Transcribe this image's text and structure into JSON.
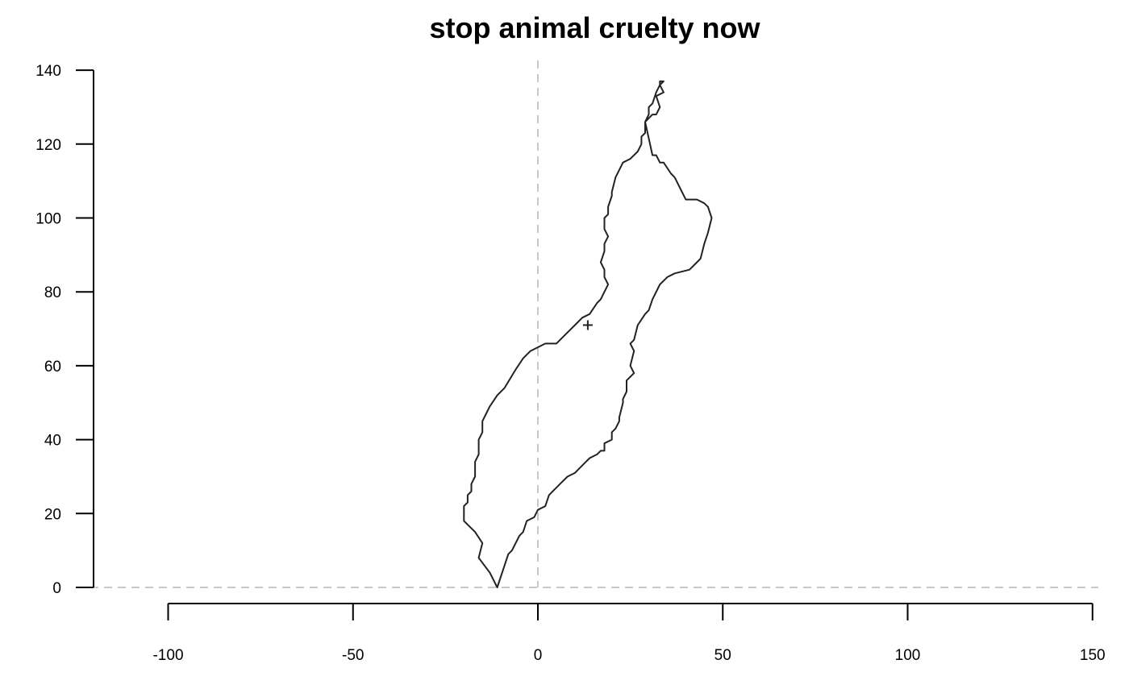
{
  "chart_data": {
    "type": "line",
    "title": "stop animal cruelty now",
    "xlabel": "",
    "ylabel": "",
    "xlim": [
      -100,
      150
    ],
    "ylim": [
      0,
      140
    ],
    "x_ticks": [
      "-100",
      "-50",
      "0",
      "50",
      "100",
      "150"
    ],
    "y_ticks": [
      "0",
      "20",
      "40",
      "60",
      "80",
      "100",
      "120",
      "140"
    ],
    "grid": false,
    "reference_lines": [
      {
        "orientation": "vertical",
        "at": 0,
        "style": "dashed"
      },
      {
        "orientation": "horizontal",
        "at": 0,
        "style": "dashed"
      }
    ],
    "marker": {
      "symbol": "+",
      "x": 13.5,
      "y": 71
    },
    "outline_color": "#222222",
    "reference_line_color": "#c8c8c8",
    "series": [
      {
        "closed": true,
        "x": [
          -11,
          -8,
          -7,
          -5,
          -4,
          -3,
          -1,
          0,
          2,
          3,
          4,
          6,
          7,
          8,
          10,
          11,
          13,
          14,
          16,
          17,
          18,
          18,
          20,
          20,
          21,
          22,
          22,
          23,
          23,
          24,
          24,
          26,
          25,
          26,
          25,
          26,
          27,
          29,
          30,
          31,
          33,
          35,
          37,
          41,
          43,
          44,
          45,
          46,
          47,
          46,
          45,
          43,
          40,
          38,
          37,
          36,
          34,
          33,
          32,
          31,
          29,
          31,
          32,
          33,
          32,
          34,
          33,
          33,
          34,
          33,
          32,
          31,
          30,
          30,
          29,
          29,
          28,
          28,
          27,
          25,
          23,
          22,
          21,
          20,
          20,
          19,
          19,
          18,
          18,
          19,
          18,
          18,
          17,
          18,
          18,
          19,
          18,
          17,
          16,
          14,
          12,
          10,
          9,
          7,
          6,
          5,
          3,
          2,
          0,
          -2,
          -4,
          -6,
          -9,
          -11,
          -13,
          -14,
          -15,
          -15,
          -16,
          -16,
          -16,
          -17,
          -17,
          -17,
          -18,
          -18,
          -19,
          -19,
          -20,
          -20,
          -20,
          -19,
          -17,
          -15,
          -16,
          -13,
          -11
        ],
        "y": [
          0,
          9,
          10,
          14,
          15,
          18,
          19,
          21,
          22,
          25,
          26,
          28,
          29,
          30,
          31,
          32,
          34,
          35,
          36,
          37,
          37,
          39,
          40,
          42,
          43,
          45,
          46,
          50,
          51,
          53,
          56,
          58,
          60,
          64,
          66,
          67,
          71,
          74,
          75,
          78,
          82,
          84,
          85,
          86,
          88,
          89,
          93,
          96,
          100,
          103,
          104,
          105,
          105,
          109,
          111,
          112,
          115,
          115,
          117,
          117,
          126,
          128,
          128,
          130,
          133,
          134,
          136,
          137,
          137,
          136,
          134,
          131,
          130,
          128,
          126,
          123,
          122,
          120,
          118,
          116,
          115,
          113,
          111,
          107,
          106,
          103,
          101,
          100,
          97,
          95,
          93,
          91,
          88,
          86,
          84,
          82,
          80,
          78,
          77,
          74,
          73,
          71,
          70,
          68,
          67,
          66,
          66,
          66,
          65,
          64,
          62,
          59,
          54,
          52,
          49,
          47,
          45,
          42,
          40,
          38,
          36,
          34,
          32,
          30,
          28,
          26,
          25,
          23,
          22,
          20,
          18,
          17,
          15,
          12,
          8,
          4,
          0
        ]
      }
    ]
  }
}
